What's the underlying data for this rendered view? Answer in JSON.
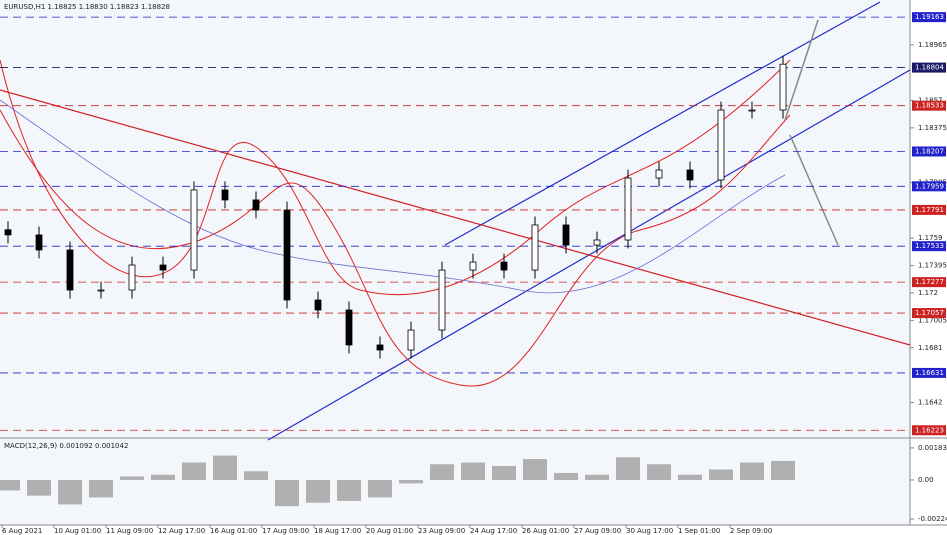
{
  "chart_data": {
    "type": "candlestick",
    "title": "EURUSD,H1 1.18825 1.18830 1.18823 1.18828",
    "open": [
      1.1765,
      1.17613,
      1.17506,
      1.17221,
      1.17221,
      1.17399,
      1.17363,
      1.17933,
      1.17862,
      1.1779,
      1.1715,
      1.17079,
      1.1683,
      1.16794,
      1.16936,
      1.17363,
      1.1742,
      1.17363,
      1.17684,
      1.17541,
      1.17577,
      1.18018,
      1.18075,
      1.18004,
      1.18502,
      1.18502
    ],
    "high": [
      1.1771,
      1.17673,
      1.17566,
      1.17281,
      1.17459,
      1.17459,
      1.17993,
      1.17993,
      1.17922,
      1.1785,
      1.1721,
      1.17139,
      1.1689,
      1.16996,
      1.17423,
      1.1748,
      1.1748,
      1.17744,
      1.17744,
      1.17637,
      1.18078,
      1.18135,
      1.18135,
      1.18562,
      1.18562,
      1.18888
    ],
    "low": [
      1.17553,
      1.17446,
      1.17161,
      1.17161,
      1.17161,
      1.17303,
      1.17303,
      1.17802,
      1.1773,
      1.1709,
      1.17019,
      1.1677,
      1.16734,
      1.16734,
      1.16876,
      1.17303,
      1.17303,
      1.17303,
      1.17481,
      1.17481,
      1.17517,
      1.17958,
      1.17944,
      1.17944,
      1.18442,
      1.18442
    ],
    "close": [
      1.17613,
      1.17506,
      1.17221,
      1.17221,
      1.17399,
      1.17363,
      1.17933,
      1.17862,
      1.1779,
      1.1715,
      1.17079,
      1.1683,
      1.16794,
      1.16936,
      1.17363,
      1.1742,
      1.17363,
      1.17684,
      1.17541,
      1.17577,
      1.18018,
      1.18075,
      1.18004,
      1.18502,
      1.18502,
      1.18828
    ],
    "ylim": [
      1.16175,
      1.19285
    ],
    "yticks": [
      1.18965,
      1.1857,
      1.18375,
      1.17985,
      1.1759,
      1.17395,
      1.172,
      1.17005,
      1.1681,
      1.1642
    ],
    "levels": [
      {
        "value": 1.19163,
        "color": "#2222cc"
      },
      {
        "value": 1.18804,
        "color": "#1a1a66"
      },
      {
        "value": 1.18533,
        "color": "#cc2222"
      },
      {
        "value": 1.18207,
        "color": "#2222cc"
      },
      {
        "value": 1.17959,
        "color": "#2222cc"
      },
      {
        "value": 1.17791,
        "color": "#cc2222"
      },
      {
        "value": 1.17533,
        "color": "#2222cc"
      },
      {
        "value": 1.17277,
        "color": "#cc2222"
      },
      {
        "value": 1.17057,
        "color": "#cc2222"
      },
      {
        "value": 1.16631,
        "color": "#2222cc"
      },
      {
        "value": 1.16223,
        "color": "#cc2222"
      }
    ],
    "x_labels": [
      "6 Aug 2021",
      "10 Aug 01:00",
      "11 Aug 09:00",
      "12 Aug 17:00",
      "16 Aug 01:00",
      "17 Aug 09:00",
      "18 Aug 17:00",
      "20 Aug 01:00",
      "23 Aug 09:00",
      "24 Aug 17:00",
      "26 Aug 01:00",
      "27 Aug 09:00",
      "30 Aug 17:00",
      "1 Sep 01:00",
      "2 Sep 09:00"
    ],
    "macd": {
      "title": "MACD(12,26,9) 0.001092 0.001042",
      "values": [
        -0.0006,
        -0.0009,
        -0.0014,
        -0.001,
        0.0002,
        0.0003,
        0.001,
        0.0014,
        0.0005,
        -0.0015,
        -0.0013,
        -0.0012,
        -0.001,
        -0.0002,
        0.0009,
        0.001,
        0.0008,
        0.0012,
        0.0004,
        0.0003,
        0.0013,
        0.0009,
        0.0003,
        0.0006,
        0.001,
        0.001092
      ],
      "color": "#b0b0b0",
      "ylim": [
        -0.00258,
        0.00229
      ],
      "yticks": [
        0.001835,
        {
          "value": 0,
          "label": "0.00"
        },
        -0.00224
      ]
    }
  }
}
